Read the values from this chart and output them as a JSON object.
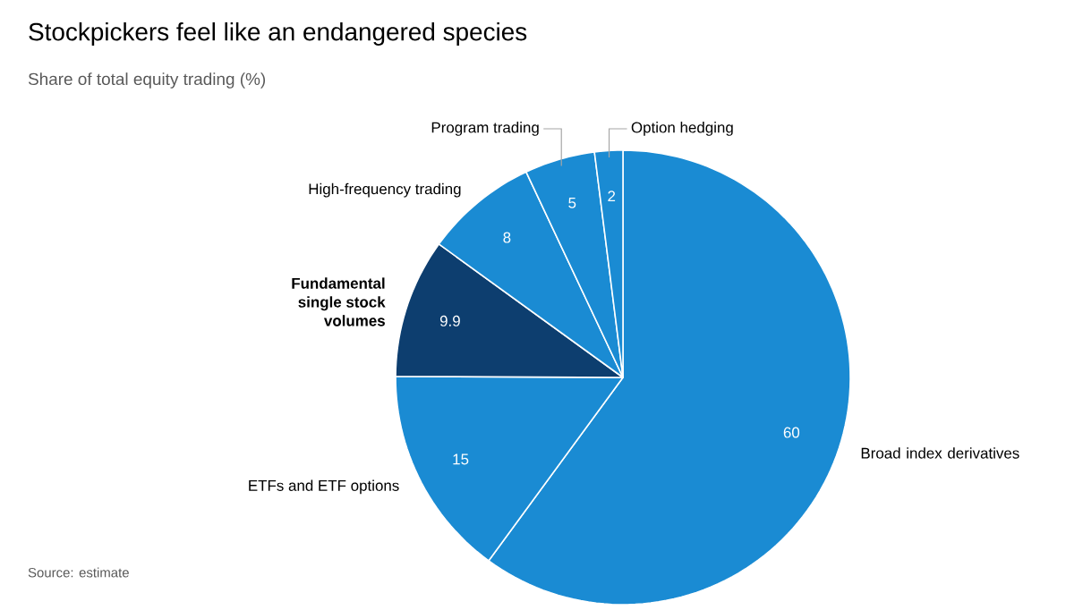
{
  "chart_data": {
    "type": "pie",
    "title": "Stockpickers feel like an endangered species",
    "subtitle": "Share of total equity trading (%)",
    "categories": [
      "Broad index derivatives",
      "ETFs and ETF options",
      "**Fundamental single stock volumes**",
      "High-frequency trading",
      "Program trading",
      "Option hedging"
    ],
    "values": [
      60,
      15,
      9.9,
      8,
      5,
      2
    ],
    "colors": [
      "#1a8bd3",
      "#1a8bd3",
      "#0d3e6f",
      "#1a8bd3",
      "#1a8bd3",
      "#1a8bd3"
    ],
    "data_labels": true,
    "annotations": [
      "Source: estimate"
    ]
  }
}
